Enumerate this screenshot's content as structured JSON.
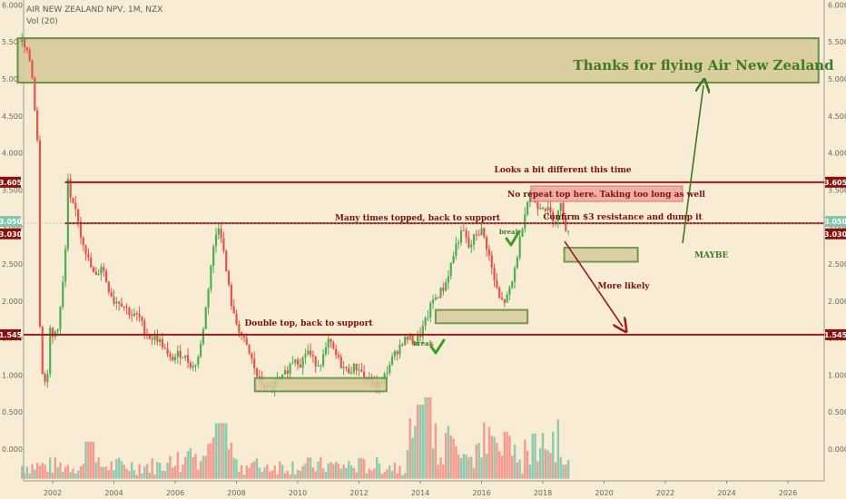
{
  "header": {
    "symbol_line": "AIR NEW ZEALAND NPV, 1M, NZX",
    "volume_label": "Vol (20)"
  },
  "price_scale": {
    "ticks": [
      "6.000",
      "5.500",
      "5.000",
      "4.500",
      "4.000",
      "3.500",
      "3.000",
      "2.500",
      "2.000",
      "1.500",
      "1.000",
      "0.500",
      "0.000"
    ],
    "tick_values": [
      6.0,
      5.5,
      5.0,
      4.5,
      4.0,
      3.5,
      3.0,
      2.5,
      2.0,
      1.5,
      1.0,
      0.5,
      0.0
    ]
  },
  "level_badges": [
    {
      "text": "3.605",
      "value": 3.605,
      "color": "#8b1111",
      "side": "both"
    },
    {
      "text": "3.050",
      "value": 3.05,
      "color": "#83c5a8",
      "side": "both"
    },
    {
      "text": "3.030",
      "value": 3.03,
      "color": "#8b1111",
      "side": "both"
    },
    {
      "text": "1.545",
      "value": 1.545,
      "color": "#8b1111",
      "side": "both"
    }
  ],
  "time_scale": {
    "ticks": [
      "2002",
      "2004",
      "2006",
      "2008",
      "2010",
      "2012",
      "2014",
      "2016",
      "2018",
      "2020",
      "2022",
      "2024",
      "2026"
    ],
    "tick_values": [
      2002,
      2004,
      2006,
      2008,
      2010,
      2012,
      2014,
      2016,
      2018,
      2020,
      2022,
      2024,
      2026
    ]
  },
  "annotations": {
    "thanks": "Thanks for flying Air New Zealand",
    "looks_different": "Looks a bit different this time",
    "no_repeat": "No repeat top here. Taking too long as well",
    "many_times": "Many times topped, back to support",
    "confirm": "Confirm $3 resistance and dump it",
    "maybe": "MAYBE",
    "more_likely": "More likely",
    "double_top": "Double top, back to support",
    "break_1": "break",
    "break_2": "break"
  },
  "colors": {
    "background": "#f8ecd4",
    "up": "#4caf50",
    "down": "#e5534b",
    "vol_up": "#8ec9b0",
    "vol_down": "#f29b8f",
    "resistance": "#9b1c1c",
    "zone_fill": "#d8cc9c",
    "zone_border": "#5a8a3a",
    "annotation_text": "#7a1010",
    "green_text": "#3d7a22"
  },
  "chart_data": {
    "type": "candlestick",
    "title": "AIR NEW ZEALAND NPV, 1M, NZX",
    "xlabel": "",
    "ylabel": "",
    "ylim": [
      -0.5,
      6.15
    ],
    "xlim": [
      2000.8,
      2027.2
    ],
    "price_series": [
      [
        2001.0,
        5.5
      ],
      [
        2001.3,
        5.2
      ],
      [
        2001.5,
        4.2
      ],
      [
        2001.6,
        1.2
      ],
      [
        2001.8,
        0.8
      ],
      [
        2001.9,
        1.6
      ],
      [
        2002.0,
        1.5
      ],
      [
        2002.2,
        1.7
      ],
      [
        2002.4,
        2.5
      ],
      [
        2002.5,
        3.6
      ],
      [
        2002.6,
        3.3
      ],
      [
        2002.8,
        3.2
      ],
      [
        2002.9,
        2.9
      ],
      [
        2003.0,
        2.8
      ],
      [
        2003.2,
        2.5
      ],
      [
        2003.4,
        2.3
      ],
      [
        2003.6,
        2.5
      ],
      [
        2003.8,
        2.2
      ],
      [
        2004.0,
        2.0
      ],
      [
        2004.2,
        2.0
      ],
      [
        2004.4,
        1.9
      ],
      [
        2004.6,
        1.8
      ],
      [
        2004.8,
        1.8
      ],
      [
        2005.0,
        1.6
      ],
      [
        2005.2,
        1.5
      ],
      [
        2005.4,
        1.5
      ],
      [
        2005.6,
        1.4
      ],
      [
        2005.8,
        1.2
      ],
      [
        2006.0,
        1.25
      ],
      [
        2006.2,
        1.3
      ],
      [
        2006.4,
        1.2
      ],
      [
        2006.6,
        1.1
      ],
      [
        2006.8,
        1.3
      ],
      [
        2007.0,
        1.9
      ],
      [
        2007.2,
        2.6
      ],
      [
        2007.4,
        3.05
      ],
      [
        2007.5,
        2.9
      ],
      [
        2007.7,
        2.3
      ],
      [
        2007.9,
        1.8
      ],
      [
        2008.1,
        1.6
      ],
      [
        2008.3,
        1.4
      ],
      [
        2008.5,
        1.2
      ],
      [
        2008.7,
        0.95
      ],
      [
        2008.9,
        0.85
      ],
      [
        2009.1,
        0.8
      ],
      [
        2009.3,
        0.9
      ],
      [
        2009.5,
        0.95
      ],
      [
        2009.7,
        1.1
      ],
      [
        2009.9,
        1.25
      ],
      [
        2010.1,
        1.15
      ],
      [
        2010.3,
        1.35
      ],
      [
        2010.5,
        1.2
      ],
      [
        2010.7,
        1.15
      ],
      [
        2010.9,
        1.3
      ],
      [
        2011.0,
        1.45
      ],
      [
        2011.2,
        1.3
      ],
      [
        2011.4,
        1.15
      ],
      [
        2011.6,
        1.05
      ],
      [
        2011.8,
        1.1
      ],
      [
        2012.0,
        1.1
      ],
      [
        2012.2,
        0.95
      ],
      [
        2012.4,
        0.9
      ],
      [
        2012.6,
        0.85
      ],
      [
        2012.8,
        0.95
      ],
      [
        2013.0,
        1.15
      ],
      [
        2013.2,
        1.3
      ],
      [
        2013.4,
        1.45
      ],
      [
        2013.6,
        1.5
      ],
      [
        2013.8,
        1.45
      ],
      [
        2014.0,
        1.55
      ],
      [
        2014.2,
        1.75
      ],
      [
        2014.4,
        2.0
      ],
      [
        2014.6,
        2.1
      ],
      [
        2014.8,
        2.2
      ],
      [
        2015.0,
        2.5
      ],
      [
        2015.2,
        2.8
      ],
      [
        2015.4,
        2.95
      ],
      [
        2015.6,
        2.7
      ],
      [
        2015.8,
        2.9
      ],
      [
        2016.0,
        2.95
      ],
      [
        2016.2,
        2.7
      ],
      [
        2016.4,
        2.3
      ],
      [
        2016.6,
        2.0
      ],
      [
        2016.8,
        2.0
      ],
      [
        2017.0,
        2.25
      ],
      [
        2017.2,
        2.7
      ],
      [
        2017.4,
        3.2
      ],
      [
        2017.6,
        3.5
      ],
      [
        2017.8,
        3.3
      ],
      [
        2018.0,
        3.3
      ],
      [
        2018.2,
        3.2
      ],
      [
        2018.4,
        3.1
      ],
      [
        2018.6,
        3.3
      ],
      [
        2018.8,
        2.9
      ]
    ],
    "levels": [
      {
        "name": "resistance",
        "value": 3.605
      },
      {
        "name": "resistance",
        "value": 3.05
      },
      {
        "name": "support",
        "value": 1.545
      }
    ],
    "zones": [
      {
        "x": [
          2001.0,
          2027.0
        ],
        "y": [
          4.95,
          5.55
        ]
      },
      {
        "x": [
          2008.6,
          2012.9
        ],
        "y": [
          0.78,
          0.96
        ]
      },
      {
        "x": [
          2014.5,
          2017.5
        ],
        "y": [
          1.7,
          1.88
        ]
      },
      {
        "x": [
          2018.7,
          2021.1
        ],
        "y": [
          2.53,
          2.72
        ]
      }
    ]
  }
}
